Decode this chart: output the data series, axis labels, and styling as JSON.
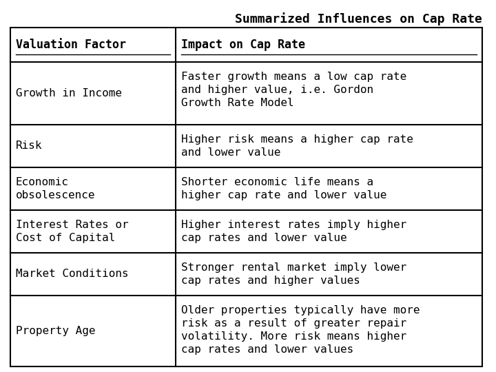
{
  "title": "Summarized Influences on Cap Rate",
  "title_fontsize": 13,
  "title_fontweight": "bold",
  "header": [
    "Valuation Factor",
    "Impact on Cap Rate"
  ],
  "rows": [
    [
      "Growth in Income",
      "Faster growth means a low cap rate\nand higher value, i.e. Gordon\nGrowth Rate Model"
    ],
    [
      "Risk",
      "Higher risk means a higher cap rate\nand lower value"
    ],
    [
      "Economic\nobsolescence",
      "Shorter economic life means a\nhigher cap rate and lower value"
    ],
    [
      "Interest Rates or\nCost of Capital",
      "Higher interest rates imply higher\ncap rates and lower value"
    ],
    [
      "Market Conditions",
      "Stronger rental market imply lower\ncap rates and higher values"
    ],
    [
      "Property Age",
      "Older properties typically have more\nrisk as a result of greater repair\nvolatility. More risk means higher\ncap rates and lower values"
    ]
  ],
  "background_color": "#ffffff",
  "table_border_color": "#000000",
  "cell_text_color": "#000000",
  "header_fontsize": 12,
  "cell_fontsize": 11.5,
  "font_family": "DejaVu Sans Mono"
}
